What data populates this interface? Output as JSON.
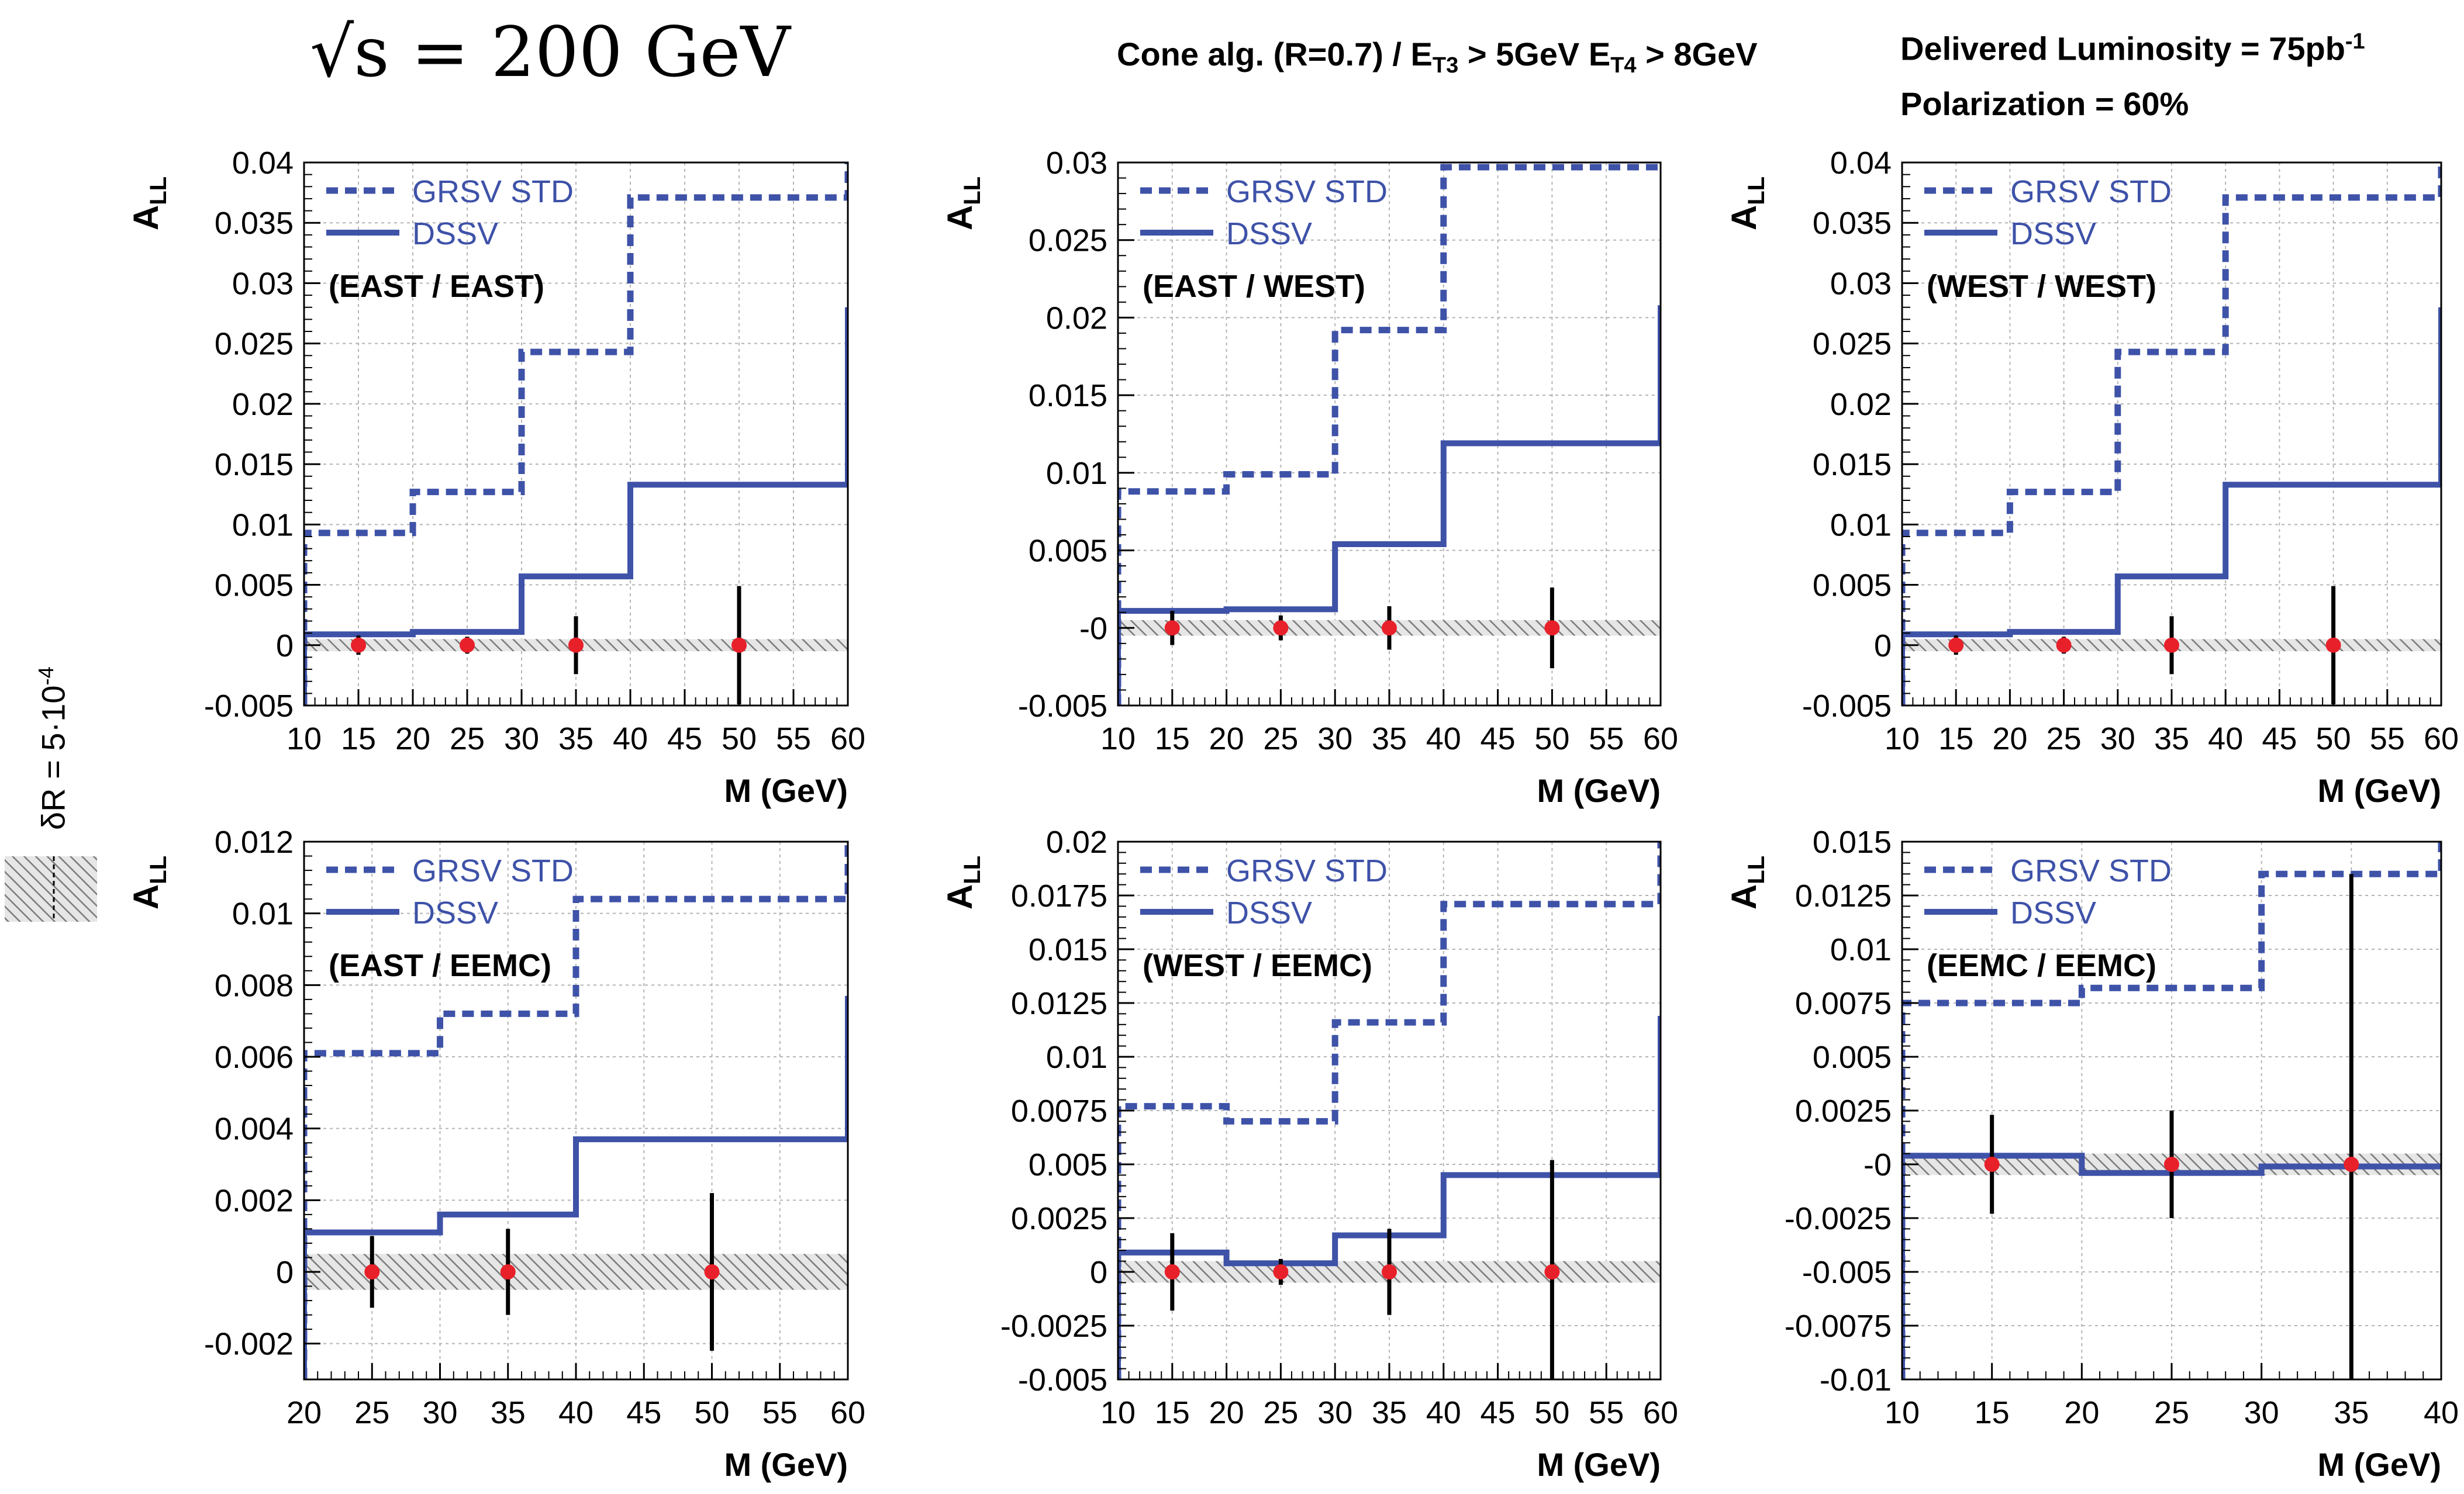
{
  "header": {
    "energy": "√s = 200 GeV",
    "cone_text": "Cone alg. (R=0.7) / E",
    "cone_sub1": "T3",
    "cone_mid": " > 5GeV  E",
    "cone_sub2": "T4",
    "cone_end": " > 8GeV",
    "lumi_text": "Delivered Luminosity = 75pb",
    "lumi_sup": "-1",
    "polarization": "Polarization = 60%"
  },
  "side_label": {
    "text": "δR = 5·10",
    "sup": "-4"
  },
  "colors": {
    "theory_line": "#3e52a8",
    "points": "#e8202a",
    "error_bars": "#000000",
    "grid": "#b4b4b4"
  },
  "chart_data": [
    {
      "type": "step",
      "panel": "(EAST / EAST)",
      "ylabel": "A_LL",
      "xlabel": "M (GeV)",
      "xlim": [
        10,
        60
      ],
      "ylim": [
        -0.005,
        0.04
      ],
      "xticks": [
        "10",
        "15",
        "20",
        "25",
        "30",
        "35",
        "40",
        "45",
        "50",
        "55",
        "60"
      ],
      "yticks": [
        "-0.005",
        "0",
        "0.005",
        "0.01",
        "0.015",
        "0.02",
        "0.025",
        "0.03",
        "0.035",
        "0.04"
      ],
      "bin_edges": [
        10,
        20,
        30,
        40,
        60
      ],
      "series": [
        {
          "name": "GRSV STD",
          "style": "dashed",
          "values": [
            0.0093,
            0.0127,
            0.0243,
            0.0371
          ],
          "end_value": 0.04
        },
        {
          "name": "DSSV",
          "style": "solid",
          "values": [
            0.0009,
            0.0011,
            0.0057,
            0.0133
          ],
          "end_value": 0.028
        }
      ],
      "points": {
        "x": [
          15,
          25,
          35,
          50
        ],
        "y": [
          0,
          0,
          0,
          0
        ],
        "err": [
          0.0008,
          0.0007,
          0.0024,
          0.0049
        ]
      },
      "band": 0.0005,
      "grid": true,
      "legend_position": "top-left"
    },
    {
      "type": "step",
      "panel": "(EAST / WEST)",
      "ylabel": "A_LL",
      "xlabel": "M (GeV)",
      "xlim": [
        10,
        60
      ],
      "ylim": [
        -0.005,
        0.03
      ],
      "xticks": [
        "10",
        "15",
        "20",
        "25",
        "30",
        "35",
        "40",
        "45",
        "50",
        "55",
        "60"
      ],
      "yticks": [
        "-0.005",
        "-0",
        "0.005",
        "0.01",
        "0.015",
        "0.02",
        "0.025",
        "0.03"
      ],
      "bin_edges": [
        10,
        20,
        30,
        40,
        60
      ],
      "series": [
        {
          "name": "GRSV STD",
          "style": "dashed",
          "values": [
            0.0088,
            0.0099,
            0.0192,
            0.0297
          ],
          "end_value": 0.0297
        },
        {
          "name": "DSSV",
          "style": "solid",
          "values": [
            0.0011,
            0.0012,
            0.0054,
            0.0119
          ],
          "end_value": 0.0208
        }
      ],
      "points": {
        "x": [
          15,
          25,
          35,
          50
        ],
        "y": [
          0,
          0,
          0,
          0
        ],
        "err": [
          0.0011,
          0.0008,
          0.0014,
          0.0026
        ]
      },
      "band": 0.0005,
      "grid": true,
      "legend_position": "top-left"
    },
    {
      "type": "step",
      "panel": "(WEST / WEST)",
      "ylabel": "A_LL",
      "xlabel": "M (GeV)",
      "xlim": [
        10,
        60
      ],
      "ylim": [
        -0.005,
        0.04
      ],
      "xticks": [
        "10",
        "15",
        "20",
        "25",
        "30",
        "35",
        "40",
        "45",
        "50",
        "55",
        "60"
      ],
      "yticks": [
        "-0.005",
        "0",
        "0.005",
        "0.01",
        "0.015",
        "0.02",
        "0.025",
        "0.03",
        "0.035",
        "0.04"
      ],
      "bin_edges": [
        10,
        20,
        30,
        40,
        60
      ],
      "series": [
        {
          "name": "GRSV STD",
          "style": "dashed",
          "values": [
            0.0093,
            0.0127,
            0.0243,
            0.0371
          ],
          "end_value": 0.04
        },
        {
          "name": "DSSV",
          "style": "solid",
          "values": [
            0.0009,
            0.0011,
            0.0057,
            0.0133
          ],
          "end_value": 0.028
        }
      ],
      "points": {
        "x": [
          15,
          25,
          35,
          50
        ],
        "y": [
          0,
          0,
          0,
          0
        ],
        "err": [
          0.0008,
          0.0007,
          0.0024,
          0.0049
        ]
      },
      "band": 0.0005,
      "grid": true,
      "legend_position": "top-left"
    },
    {
      "type": "step",
      "panel": "(EAST / EEMC)",
      "ylabel": "A_LL",
      "xlabel": "M (GeV)",
      "xlim": [
        20,
        60
      ],
      "ylim": [
        -0.003,
        0.012
      ],
      "xticks": [
        "20",
        "25",
        "30",
        "35",
        "40",
        "45",
        "50",
        "55",
        "60"
      ],
      "yticks": [
        "-0.002",
        "0",
        "0.002",
        "0.004",
        "0.006",
        "0.008",
        "0.01",
        "0.012"
      ],
      "bin_edges": [
        20,
        30,
        40,
        60
      ],
      "series": [
        {
          "name": "GRSV STD",
          "style": "dashed",
          "values": [
            0.0061,
            0.0072,
            0.0104
          ],
          "end_value": 0.012
        },
        {
          "name": "DSSV",
          "style": "solid",
          "values": [
            0.0011,
            0.0016,
            0.0037
          ],
          "end_value": 0.0077
        }
      ],
      "points": {
        "x": [
          25,
          35,
          50
        ],
        "y": [
          0,
          0,
          0
        ],
        "err": [
          0.001,
          0.0012,
          0.0022
        ]
      },
      "band": 0.0005,
      "grid": true,
      "legend_position": "top-left"
    },
    {
      "type": "step",
      "panel": "(WEST / EEMC)",
      "ylabel": "A_LL",
      "xlabel": "M (GeV)",
      "xlim": [
        10,
        60
      ],
      "ylim": [
        -0.005,
        0.02
      ],
      "xticks": [
        "10",
        "15",
        "20",
        "25",
        "30",
        "35",
        "40",
        "45",
        "50",
        "55",
        "60"
      ],
      "yticks": [
        "-0.005",
        "-0.0025",
        "0",
        "0.0025",
        "0.005",
        "0.0075",
        "0.01",
        "0.0125",
        "0.015",
        "0.0175",
        "0.02"
      ],
      "bin_edges": [
        10,
        20,
        30,
        40,
        60
      ],
      "series": [
        {
          "name": "GRSV STD",
          "style": "dashed",
          "values": [
            0.0077,
            0.007,
            0.0116,
            0.0171
          ],
          "end_value": 0.02
        },
        {
          "name": "DSSV",
          "style": "solid",
          "values": [
            0.0009,
            0.0004,
            0.0017,
            0.0045
          ],
          "end_value": 0.0119
        }
      ],
      "points": {
        "x": [
          15,
          25,
          35,
          50
        ],
        "y": [
          0,
          0,
          0,
          0
        ],
        "err": [
          0.0018,
          0.0006,
          0.002,
          0.0052
        ]
      },
      "band": 0.0005,
      "grid": true,
      "legend_position": "top-left"
    },
    {
      "type": "step",
      "panel": "(EEMC / EEMC)",
      "ylabel": "A_LL",
      "xlabel": "M (GeV)",
      "xlim": [
        10,
        40
      ],
      "ylim": [
        -0.01,
        0.015
      ],
      "xticks": [
        "10",
        "15",
        "20",
        "25",
        "30",
        "35",
        "40"
      ],
      "yticks": [
        "-0.01",
        "-0.0075",
        "-0.005",
        "-0.0025",
        "-0",
        "0.0025",
        "0.005",
        "0.0075",
        "0.01",
        "0.0125",
        "0.015"
      ],
      "bin_edges": [
        10,
        20,
        30,
        40
      ],
      "series": [
        {
          "name": "GRSV STD",
          "style": "dashed",
          "values": [
            0.0075,
            0.0082,
            0.0135
          ],
          "end_value": 0.015
        },
        {
          "name": "DSSV",
          "style": "solid",
          "values": [
            0.0004,
            -0.0004,
            -0.0001
          ],
          "end_value": -0.0001
        }
      ],
      "points": {
        "x": [
          15,
          25,
          35
        ],
        "y": [
          0,
          0,
          0
        ],
        "err": [
          0.0023,
          0.0025,
          0.0135
        ]
      },
      "band": 0.0005,
      "grid": true,
      "legend_position": "top-left"
    }
  ]
}
